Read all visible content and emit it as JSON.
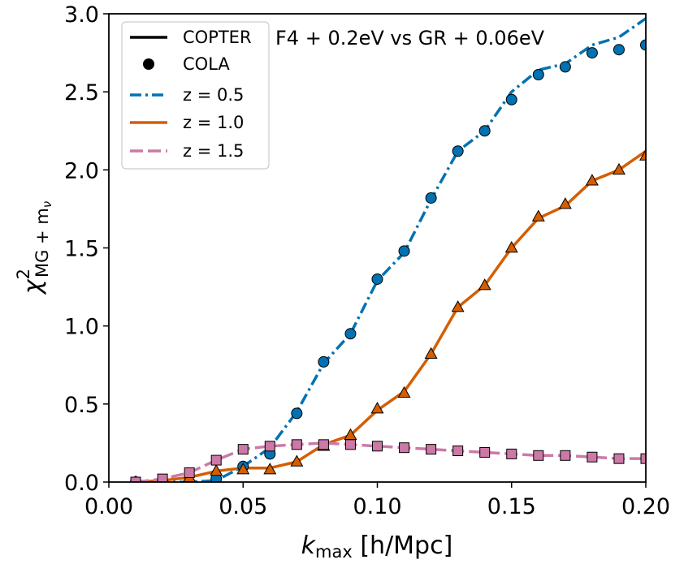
{
  "chart_data": {
    "type": "line",
    "title": "F4 + 0.2eV vs GR + 0.06eV",
    "xlabel": {
      "main": "k",
      "sub": "max",
      "rest": " [h/Mpc]"
    },
    "ylabel": {
      "main": "χ",
      "sup": "2",
      "sub": "MG + m",
      "subsub": "ν"
    },
    "xlim": [
      0.0,
      0.2
    ],
    "ylim": [
      0.0,
      3.0
    ],
    "xticks": [
      0.0,
      0.05,
      0.1,
      0.15,
      0.2
    ],
    "xtick_labels": [
      "0.00",
      "0.05",
      "0.10",
      "0.15",
      "0.20"
    ],
    "yticks": [
      0.0,
      0.5,
      1.0,
      1.5,
      2.0,
      2.5,
      3.0
    ],
    "ytick_labels": [
      "0.0",
      "0.5",
      "1.0",
      "1.5",
      "2.0",
      "2.5",
      "3.0"
    ],
    "legend": {
      "position": "top-left",
      "entries": [
        {
          "label": "COPTER",
          "kind": "line"
        },
        {
          "label": "COLA",
          "kind": "marker"
        },
        {
          "label": "z = 0.5",
          "kind": "series",
          "series": 0
        },
        {
          "label": "z = 1.0",
          "kind": "series",
          "series": 1
        },
        {
          "label": "z = 1.5",
          "kind": "series",
          "series": 2
        }
      ]
    },
    "series": [
      {
        "name": "z = 0.5",
        "color": "#0072b2",
        "line_style": "dashdot",
        "marker": "circle",
        "copter_x": [
          0.01,
          0.02,
          0.03,
          0.04,
          0.05,
          0.06,
          0.07,
          0.08,
          0.09,
          0.1,
          0.11,
          0.12,
          0.13,
          0.14,
          0.15,
          0.16,
          0.17,
          0.18,
          0.19,
          0.2
        ],
        "copter_y": [
          0.0,
          0.0,
          0.0,
          0.01,
          0.1,
          0.22,
          0.45,
          0.76,
          0.95,
          1.29,
          1.47,
          1.81,
          2.12,
          2.25,
          2.5,
          2.64,
          2.68,
          2.8,
          2.85,
          2.97
        ],
        "cola_x": [
          0.01,
          0.02,
          0.03,
          0.04,
          0.05,
          0.06,
          0.07,
          0.08,
          0.09,
          0.1,
          0.11,
          0.12,
          0.13,
          0.14,
          0.15,
          0.16,
          0.17,
          0.18,
          0.19,
          0.2
        ],
        "cola_y": [
          0.0,
          0.0,
          0.0,
          0.02,
          0.1,
          0.18,
          0.44,
          0.77,
          0.95,
          1.3,
          1.48,
          1.82,
          2.12,
          2.25,
          2.45,
          2.61,
          2.66,
          2.75,
          2.77,
          2.8
        ]
      },
      {
        "name": "z = 1.0",
        "color": "#d55e00",
        "line_style": "solid",
        "marker": "triangle",
        "copter_x": [
          0.01,
          0.02,
          0.03,
          0.04,
          0.05,
          0.06,
          0.07,
          0.08,
          0.09,
          0.1,
          0.11,
          0.12,
          0.13,
          0.14,
          0.15,
          0.16,
          0.17,
          0.18,
          0.19,
          0.2
        ],
        "copter_y": [
          0.0,
          0.01,
          0.03,
          0.07,
          0.09,
          0.09,
          0.13,
          0.24,
          0.3,
          0.46,
          0.58,
          0.82,
          1.12,
          1.26,
          1.5,
          1.69,
          1.77,
          1.93,
          2.0,
          2.12
        ],
        "cola_x": [
          0.01,
          0.02,
          0.03,
          0.04,
          0.05,
          0.06,
          0.07,
          0.08,
          0.09,
          0.1,
          0.11,
          0.12,
          0.13,
          0.14,
          0.15,
          0.16,
          0.17,
          0.18,
          0.19,
          0.2
        ],
        "cola_y": [
          0.0,
          0.01,
          0.03,
          0.07,
          0.08,
          0.08,
          0.13,
          0.23,
          0.3,
          0.47,
          0.57,
          0.82,
          1.12,
          1.26,
          1.5,
          1.7,
          1.78,
          1.93,
          2.0,
          2.09
        ]
      },
      {
        "name": "z = 1.5",
        "color": "#cc79a7",
        "line_style": "dashed",
        "marker": "square",
        "copter_x": [
          0.01,
          0.02,
          0.03,
          0.04,
          0.05,
          0.06,
          0.07,
          0.08,
          0.09,
          0.1,
          0.11,
          0.12,
          0.13,
          0.14,
          0.15,
          0.16,
          0.17,
          0.18,
          0.19,
          0.2
        ],
        "copter_y": [
          0.0,
          0.02,
          0.06,
          0.14,
          0.21,
          0.23,
          0.24,
          0.25,
          0.24,
          0.23,
          0.22,
          0.21,
          0.2,
          0.19,
          0.18,
          0.17,
          0.17,
          0.16,
          0.15,
          0.15
        ],
        "cola_x": [
          0.01,
          0.02,
          0.03,
          0.04,
          0.05,
          0.06,
          0.07,
          0.08,
          0.09,
          0.1,
          0.11,
          0.12,
          0.13,
          0.14,
          0.15,
          0.16,
          0.17,
          0.18,
          0.19,
          0.2
        ],
        "cola_y": [
          0.0,
          0.02,
          0.06,
          0.14,
          0.21,
          0.23,
          0.24,
          0.24,
          0.24,
          0.23,
          0.22,
          0.21,
          0.2,
          0.19,
          0.18,
          0.17,
          0.17,
          0.16,
          0.15,
          0.15
        ]
      }
    ]
  }
}
